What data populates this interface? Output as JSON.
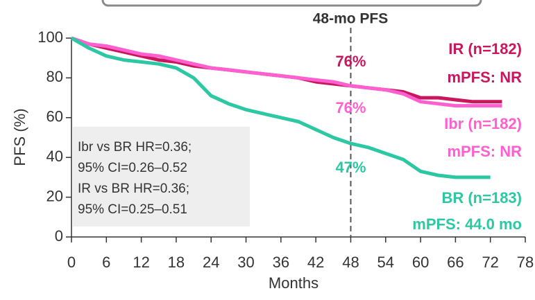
{
  "chart_data": {
    "type": "line",
    "title": "48-mo PFS",
    "landmark": 48,
    "xlabel": "Months",
    "ylabel": "PFS (%)",
    "x": [
      0,
      3,
      6,
      9,
      12,
      15,
      18,
      21,
      24,
      27,
      30,
      33,
      36,
      39,
      42,
      45,
      48,
      51,
      54,
      57,
      60,
      63,
      66,
      69,
      72,
      74
    ],
    "series": [
      {
        "name": "IR (n=182)",
        "median": "mPFS: NR",
        "pfs_48_label": "76%",
        "color": "#c8175d",
        "values": [
          100,
          97,
          95,
          93,
          91,
          89,
          88,
          86,
          85,
          84,
          83,
          82,
          81,
          80,
          78,
          77,
          76,
          75,
          74,
          73,
          70,
          70,
          69,
          68,
          68,
          68
        ]
      },
      {
        "name": "Ibr (n=182)",
        "median": "mPFS: NR",
        "pfs_48_label": "76%",
        "color": "#ff5fcf",
        "values": [
          100,
          97,
          96,
          94,
          92,
          91,
          89,
          87,
          85,
          84,
          83,
          82,
          81,
          80,
          79,
          78,
          76,
          75,
          74,
          72,
          68,
          67,
          66,
          66,
          66,
          66
        ]
      },
      {
        "name": "BR (n=183)",
        "median": "mPFS: 44.0 mo",
        "pfs_48_label": "47%",
        "color": "#2cc7a3",
        "values": [
          100,
          95,
          91,
          89,
          88,
          87,
          85,
          80,
          71,
          67,
          64,
          62,
          60,
          58,
          54,
          50,
          47,
          45,
          42,
          39,
          33,
          31,
          30,
          30,
          30,
          null
        ]
      }
    ],
    "hr_box": [
      "Ibr vs BR HR=0.36;",
      "95% CI=0.26–0.52",
      "IR vs BR HR=0.36;",
      "95% CI=0.25–0.51"
    ],
    "xlim": [
      0,
      78
    ],
    "xticks": [
      0,
      6,
      12,
      18,
      24,
      30,
      36,
      42,
      48,
      54,
      60,
      66,
      72,
      78
    ],
    "ylim": [
      0,
      100
    ],
    "yticks": [
      0,
      20,
      40,
      60,
      80,
      100
    ]
  }
}
